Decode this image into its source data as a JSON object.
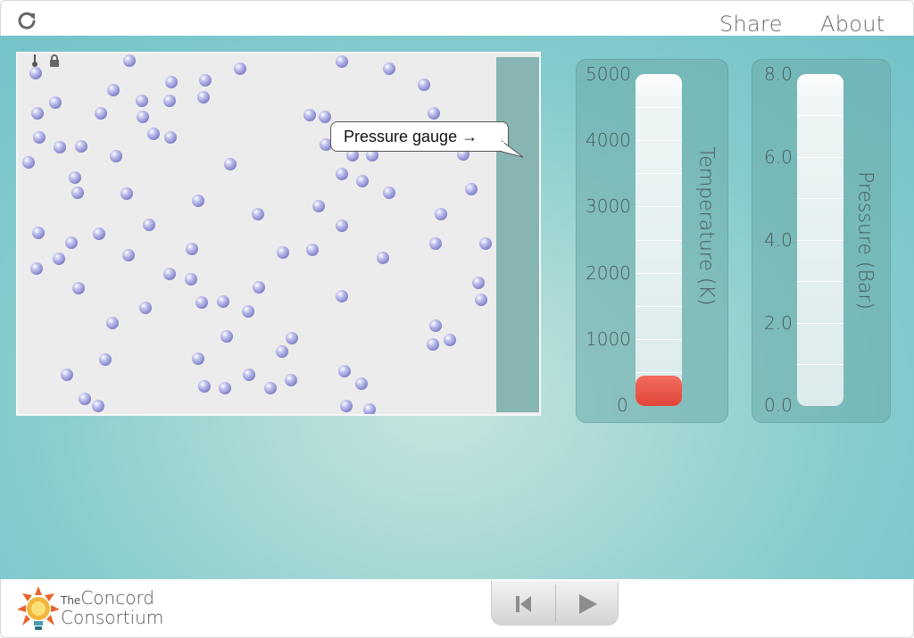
{
  "header": {
    "reload_icon": "reload-icon",
    "share_label": "Share",
    "about_label": "About"
  },
  "model": {
    "thermometer_icon": "thermometer-icon",
    "lock_icon": "lock-icon",
    "callout_text": "Pressure gauge →",
    "atom_color": "#a9a9e3",
    "wall_color": "#86b5b2"
  },
  "temperature_gauge": {
    "title": "Temperature (K)",
    "scale": [
      "5000",
      "4000",
      "3000",
      "2000",
      "1000",
      "0"
    ],
    "min": 0,
    "max": 5000,
    "value": 450,
    "fill_color": "#e24439"
  },
  "pressure_gauge": {
    "title": "Pressure (Bar)",
    "scale": [
      "8.0",
      "6.0",
      "4.0",
      "2.0",
      "0.0"
    ],
    "min": 0,
    "max": 8,
    "value": 0
  },
  "footer": {
    "logo_the": "The",
    "logo_line1": "Concord",
    "logo_line2": "Consortium",
    "reset_icon": "skip-back-icon",
    "play_icon": "play-icon"
  },
  "colors": {
    "stage_bg": "#86cccd",
    "panel_bg": "#6eacaa"
  }
}
